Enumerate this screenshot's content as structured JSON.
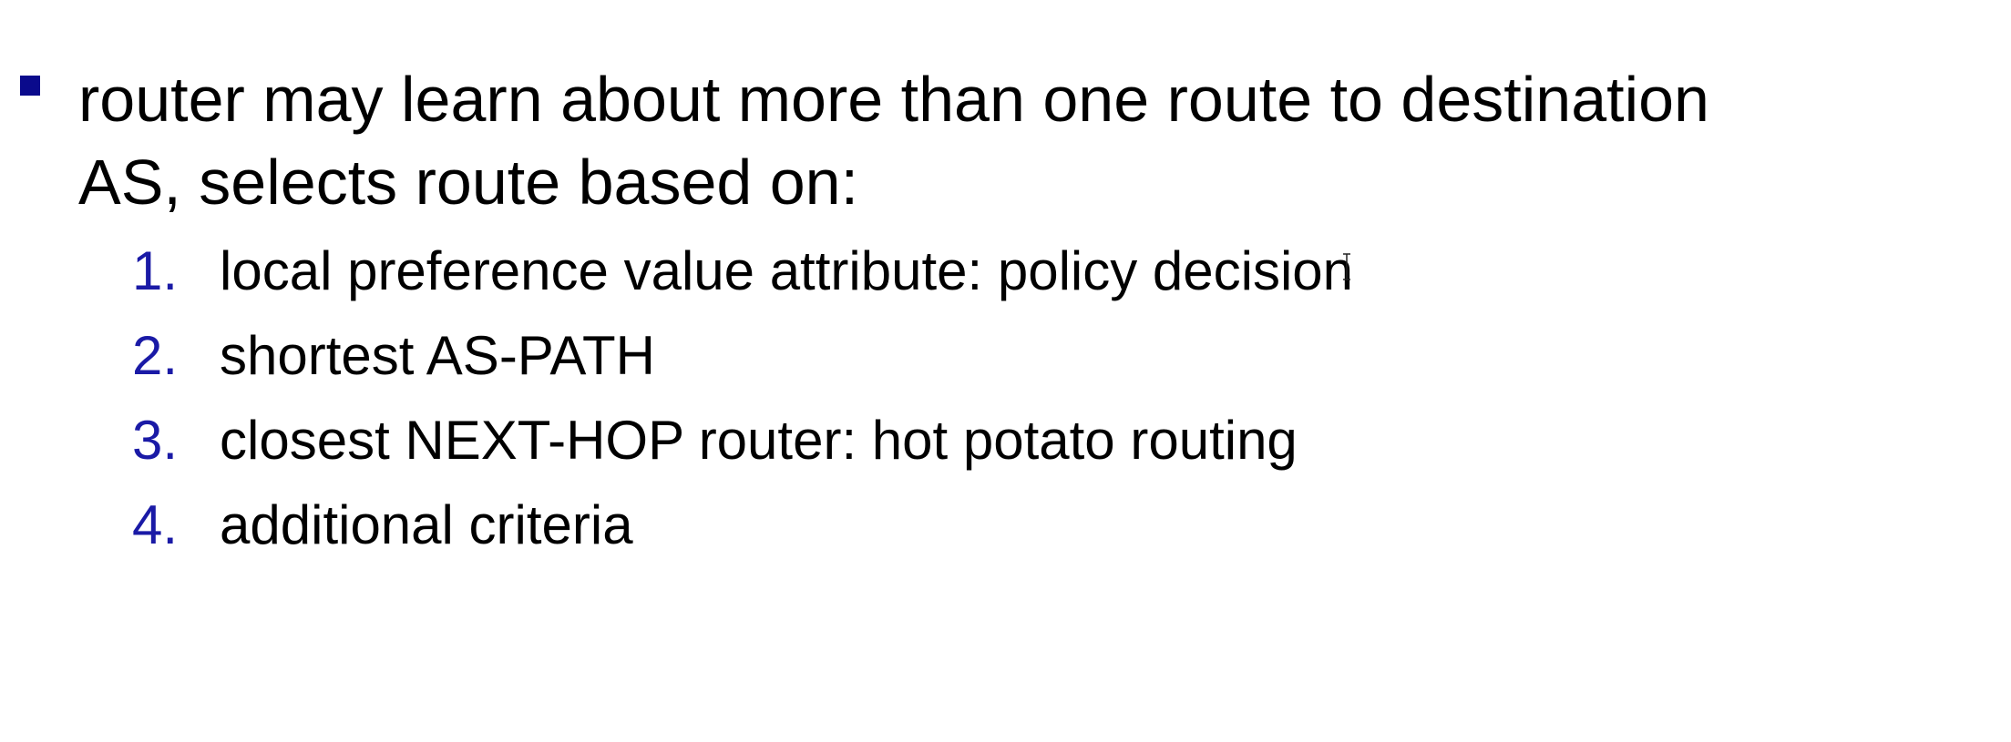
{
  "bullet": {
    "line1": "router may learn about more than one route to destination",
    "line2": "AS, selects route based on:"
  },
  "criteria": [
    {
      "number": "1.",
      "text": "local preference value attribute: policy decision"
    },
    {
      "number": "2.",
      "text": "shortest AS-PATH"
    },
    {
      "number": "3.",
      "text": "closest NEXT-HOP router: hot potato routing"
    },
    {
      "number": "4.",
      "text": "additional criteria"
    }
  ],
  "colors": {
    "bullet_marker": "#0a0a8c",
    "list_number": "#1a1aa6",
    "text": "#000000",
    "background": "#ffffff"
  },
  "icons": {
    "cursor": "i-beam-cursor-icon",
    "bullet": "square-bullet-icon"
  }
}
